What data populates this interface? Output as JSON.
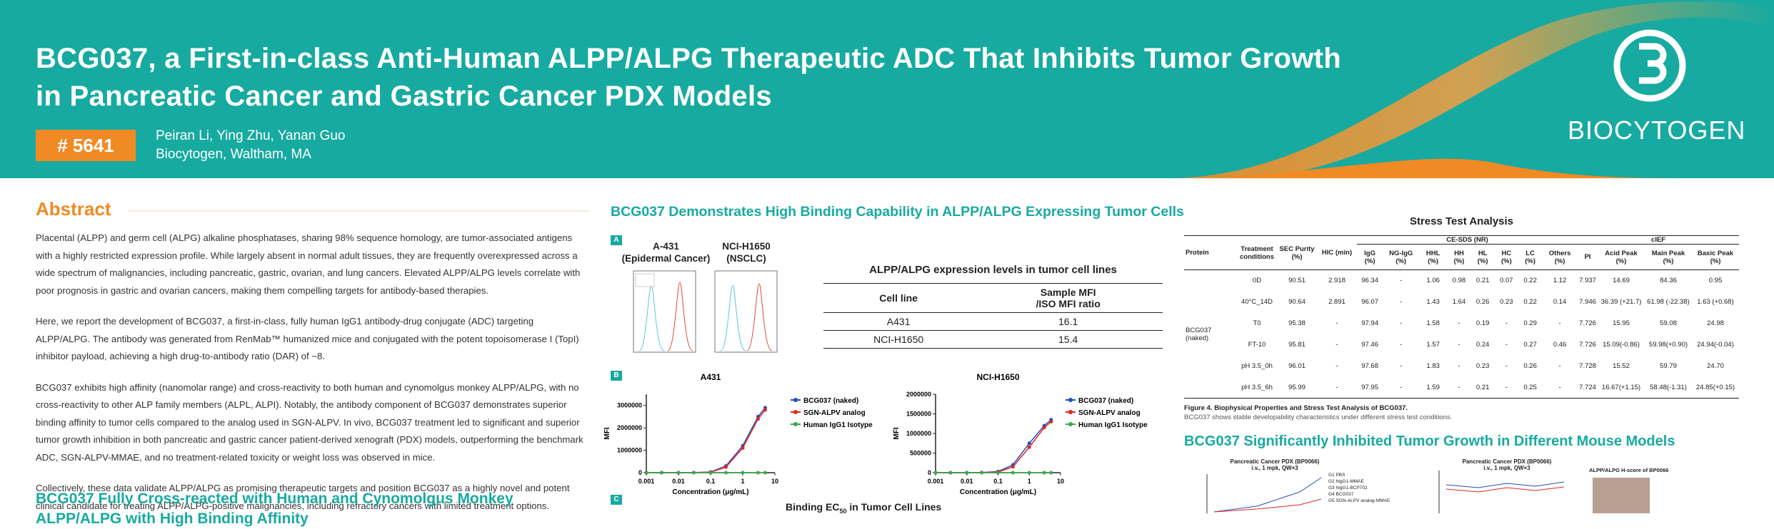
{
  "header": {
    "title_lines": [
      "BCG037, a First-in-class Anti-Human ALPP/ALPG Therapeutic ADC That Inhibits Tumor Growth",
      "in Pancreatic Cancer and Gastric Cancer PDX Models"
    ],
    "badge": "# 5641",
    "authors": "Peiran Li, Ying Zhu, Yanan Guo",
    "affiliation": "Biocytogen, Waltham, MA",
    "logo": "BIOCYTOGEN"
  },
  "abstract": {
    "heading": "Abstract",
    "paragraphs": [
      "Placental (ALPP) and germ cell (ALPG) alkaline phosphatases, sharing 98% sequence homology, are tumor-associated antigens with a highly restricted expression profile. While largely absent in normal adult tissues, they are frequently overexpressed across a wide spectrum of malignancies, including pancreatic, gastric, ovarian, and lung cancers. Elevated ALPP/ALPG levels correlate with poor prognosis in gastric and ovarian cancers, making them compelling targets for antibody-based therapies.",
      "Here, we report the development of BCG037, a first-in-class, fully human IgG1 antibody-drug conjugate (ADC) targeting ALPP/ALPG. The antibody was generated from RenMab™ humanized mice and conjugated with the potent topoisomerase I (TopI) inhibitor payload, achieving a high drug-to-antibody ratio (DAR) of ~8.",
      "BCG037 exhibits high affinity (nanomolar range) and cross-reactivity to both human and cynomolgus monkey ALPP/ALPG, with no cross-reactivity to other ALP family members (ALPL, ALPI). Notably, the antibody component of BCG037 demonstrates superior binding affinity to tumor cells compared to the analog used in SGN-ALPV. In vivo, BCG037 treatment led to significant and superior tumor growth inhibition in both pancreatic and gastric cancer patient-derived xenograft (PDX) models, outperforming the benchmark ADC, SGN-ALPV-MMAE, and no treatment-related toxicity or weight loss was observed in mice.",
      "Collectively, these data validate ALPP/ALPG as promising therapeutic targets and position BCG037 as a highly novel and potent clinical candidate for treating ALPP/ALPG-positive malignancies, including refractory cancers with limited treatment options."
    ],
    "next_heading": "BCG037 Fully Cross-reacted with Human and Cynomolgus Monkey ALPP/ALPG with High Binding Affinity"
  },
  "binding": {
    "heading": "BCG037 Demonstrates High Binding Capability in ALPP/ALPG Expressing Tumor Cells",
    "panels": [
      "A",
      "B",
      "C"
    ],
    "histograms": [
      [
        "A-431",
        "(Epidermal Cancer)"
      ],
      [
        "NCI-H1650",
        "(NSCLC)"
      ]
    ],
    "table": {
      "title": "ALPP/ALPG expression levels in tumor cell lines",
      "headers": [
        [
          "Cell line"
        ],
        [
          "Sample MFI",
          "/ISO MFI ratio"
        ]
      ],
      "rows": [
        [
          "A431",
          "16.1"
        ],
        [
          "NCI-H1650",
          "15.4"
        ]
      ]
    },
    "ec50_title": [
      "Binding EC",
      "50",
      " in Tumor Cell Lines"
    ]
  },
  "chart_data": [
    {
      "type": "line",
      "title": "A431",
      "x_label": "Concentration (μg/mL)",
      "y_label": "MFI",
      "log_x": true,
      "x": [
        0.001,
        0.003,
        0.01,
        0.03,
        0.1,
        0.3,
        1,
        3,
        5
      ],
      "xlim": [
        0.001,
        10
      ],
      "xticks": [
        0.001,
        0.01,
        0.1,
        1,
        10
      ],
      "ylim": [
        0,
        3500000
      ],
      "yticks": [
        0,
        1000000,
        2000000,
        3000000
      ],
      "series": [
        {
          "name": "BCG037 (naked)",
          "color": "#1f4fbf",
          "values": [
            0,
            0,
            0,
            5000,
            30000,
            300000,
            1200000,
            2500000,
            2900000
          ]
        },
        {
          "name": "SGN-ALPV analog",
          "color": "#e0261f",
          "values": [
            0,
            0,
            0,
            3000,
            20000,
            250000,
            1100000,
            2400000,
            2800000
          ]
        },
        {
          "name": "Human IgG1 Isotype",
          "color": "#3aa84a",
          "values": [
            0,
            0,
            0,
            0,
            0,
            0,
            0,
            0,
            0
          ]
        }
      ]
    },
    {
      "type": "line",
      "title": "NCI-H1650",
      "x_label": "Concentration (μg/mL)",
      "y_label": "MFI",
      "log_x": true,
      "x": [
        0.001,
        0.003,
        0.01,
        0.03,
        0.1,
        0.3,
        1,
        3,
        5
      ],
      "xlim": [
        0.001,
        10
      ],
      "xticks": [
        0.001,
        0.01,
        0.1,
        1,
        10
      ],
      "ylim": [
        0,
        2000000
      ],
      "yticks": [
        0,
        500000,
        1000000,
        1500000,
        2000000
      ],
      "series": [
        {
          "name": "BCG037 (naked)",
          "color": "#1f4fbf",
          "values": [
            0,
            0,
            0,
            5000,
            30000,
            200000,
            750000,
            1200000,
            1350000
          ]
        },
        {
          "name": "SGN-ALPV analog",
          "color": "#e0261f",
          "values": [
            0,
            0,
            0,
            2000,
            15000,
            150000,
            650000,
            1150000,
            1300000
          ]
        },
        {
          "name": "Human IgG1 Isotype",
          "color": "#3aa84a",
          "values": [
            0,
            0,
            0,
            0,
            0,
            0,
            0,
            0,
            0
          ]
        }
      ]
    }
  ],
  "stress": {
    "title": "Stress Test Analysis",
    "lead_headers": [
      "Protein",
      "Treatment conditions",
      "SEC Purity (%)",
      "HIC (min)"
    ],
    "groups": [
      "CE-SDS (NR)",
      "cIEF"
    ],
    "sub_headers": [
      "IgG (%)",
      "NG-IgG (%)",
      "HHL (%)",
      "HH (%)",
      "HL (%)",
      "HC (%)",
      "LC (%)",
      "Others (%)",
      "PI",
      "Acid Peak (%)",
      "Main Peak (%)",
      "Basic Peak (%)"
    ],
    "protein": "BCG037 (naked)",
    "rows": [
      [
        "0D",
        "90.51",
        "2.918",
        "96.34",
        "-",
        "1.06",
        "0.98",
        "0.21",
        "0.07",
        "0.22",
        "1.12",
        "7.937",
        "14.69",
        "84.36",
        "0.95"
      ],
      [
        "40°C_14D",
        "90.64",
        "2.891",
        "96.07",
        "-",
        "1.43",
        "1.64",
        "0.26",
        "0.23",
        "0.22",
        "0.14",
        "7.946",
        "36.39 (+21.7)",
        "61.98 (-22.38)",
        "1.63 (+0.68)"
      ],
      [
        "T0",
        "95.38",
        "-",
        "97.94",
        "-",
        "1.58",
        "-",
        "0.19",
        "-",
        "0.29",
        "-",
        "7.726",
        "15.95",
        "59.08",
        "24.98"
      ],
      [
        "FT-10",
        "95.81",
        "-",
        "97.46",
        "-",
        "1.57",
        "-",
        "0.24",
        "-",
        "0.27",
        "0.46",
        "7.726",
        "15.09(-0.86)",
        "59.98(+0.90)",
        "24.94(-0.04)"
      ],
      [
        "pH 3.5_0h",
        "96.01",
        "-",
        "97.68",
        "-",
        "1.83",
        "-",
        "0.23",
        "-",
        "0.26",
        "-",
        "7.728",
        "15.52",
        "59.79",
        "24.70"
      ],
      [
        "pH 3.5_6h",
        "95.99",
        "-",
        "97.95",
        "-",
        "1.59",
        "-",
        "0.21",
        "-",
        "0.25",
        "-",
        "7.724",
        "16.67(+1.15)",
        "58.48(-1.31)",
        "24.85(+0.15)"
      ]
    ],
    "caption_title": "Figure 4. Biophysical Properties and Stress Test Analysis of BCG037.",
    "caption_text": "BCG037 shows stable developability characteristics under different stress test conditions."
  },
  "tumor": {
    "heading": "BCG037 Significantly Inhibited Tumor Growth in Different Mouse Models",
    "panels": [
      [
        "Pancreatic Cancer PDX (BP0066)",
        "i.v., 1 mpk, QW×3"
      ],
      [
        "Pancreatic Cancer PDX (BP0066)",
        "i.v., 1 mpk, QW×3"
      ],
      [
        "ALPP/ALPG H-score of BP0066"
      ]
    ],
    "legend": [
      "G1 PBS",
      "G2 hIgG1-MMAE",
      "G3 hIgG1-BCP702",
      "G4 BCG037",
      "G5 SGN-ALPV analog-MMAE"
    ]
  }
}
